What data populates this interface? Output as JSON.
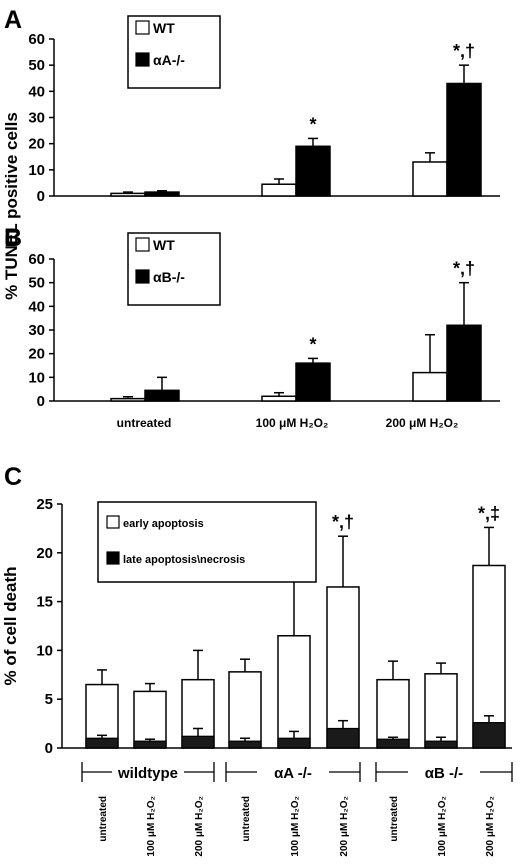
{
  "panels": [
    {
      "label": "A",
      "type": "bar",
      "yticks": [
        0,
        10,
        20,
        30,
        40,
        50,
        60
      ],
      "ylim": [
        0,
        60
      ],
      "categories": [
        "untreated",
        "100 μM H₂O₂",
        "200 μM H₂O₂"
      ],
      "legend": [
        "WT",
        "αA-/-"
      ],
      "series": [
        {
          "name": "WT",
          "values": [
            1,
            4.5,
            13
          ],
          "errors": [
            0.5,
            2,
            3.5
          ]
        },
        {
          "name": "αA-/-",
          "values": [
            1.5,
            19,
            43
          ],
          "errors": [
            0.5,
            3,
            7
          ]
        }
      ],
      "significance": [
        "",
        "*",
        "*,†"
      ]
    },
    {
      "label": "B",
      "type": "bar",
      "yticks": [
        0,
        10,
        20,
        30,
        40,
        50,
        60
      ],
      "ylim": [
        0,
        60
      ],
      "categories": [
        "untreated",
        "100 μM H₂O₂",
        "200 μM H₂O₂"
      ],
      "legend": [
        "WT",
        "αB-/-"
      ],
      "series": [
        {
          "name": "WT",
          "values": [
            1,
            2,
            12
          ],
          "errors": [
            0.8,
            1.5,
            16
          ]
        },
        {
          "name": "αB-/-",
          "values": [
            4.5,
            16,
            32
          ],
          "errors": [
            5.5,
            2,
            18
          ]
        }
      ],
      "significance": [
        "",
        "*",
        "*,†"
      ]
    }
  ],
  "shared_ylabel": "% TUNEL positive cells",
  "panel_c": {
    "label": "C",
    "type": "bar",
    "stacked": true,
    "ylabel": "% of cell death",
    "yticks": [
      0,
      5,
      10,
      15,
      20,
      25
    ],
    "ylim": [
      0,
      25
    ],
    "legend": [
      "early apoptosis",
      "late apoptosis\\necrosis"
    ],
    "groups": [
      "wildtype",
      "αA -/-",
      "αB -/-"
    ],
    "categories": [
      "untreated",
      "100 μM H₂O₂",
      "200 μM H₂O₂"
    ],
    "bars": [
      {
        "total": 6.5,
        "late": 1.0,
        "error": 1.5,
        "late_error": 0.3
      },
      {
        "total": 5.8,
        "late": 0.7,
        "error": 0.8,
        "late_error": 0.2
      },
      {
        "total": 7.0,
        "late": 1.2,
        "error": 3.0,
        "late_error": 0.8
      },
      {
        "total": 7.8,
        "late": 0.7,
        "error": 1.3,
        "late_error": 0.3
      },
      {
        "total": 11.5,
        "late": 1.0,
        "error": 6.0,
        "late_error": 0.7
      },
      {
        "total": 16.5,
        "late": 2.0,
        "error": 5.2,
        "late_error": 0.8
      },
      {
        "total": 7.0,
        "late": 0.9,
        "error": 1.9,
        "late_error": 0.2
      },
      {
        "total": 7.6,
        "late": 0.7,
        "error": 1.1,
        "late_error": 0.4
      },
      {
        "total": 18.7,
        "late": 2.6,
        "error": 3.9,
        "late_error": 0.7
      }
    ],
    "significance": [
      "",
      "",
      "",
      "",
      "",
      "*,†",
      "",
      "",
      "*,‡"
    ]
  }
}
